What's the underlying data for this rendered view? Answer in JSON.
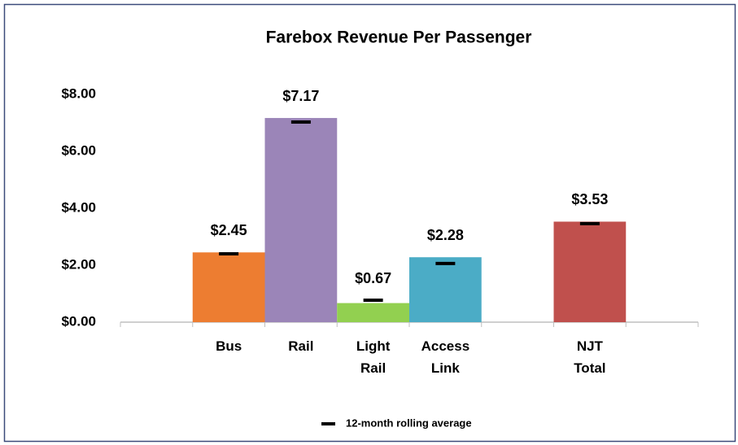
{
  "chart_data": {
    "type": "bar",
    "title": "Farebox Revenue Per Passenger",
    "categories": [
      null,
      "Bus",
      "Rail",
      "Light Rail",
      "Access Link",
      null,
      "NJT Total",
      null
    ],
    "values": [
      null,
      2.45,
      7.17,
      0.67,
      2.28,
      null,
      3.53,
      null
    ],
    "value_labels": [
      null,
      "$2.45",
      "$7.17",
      "$0.67",
      "$2.28",
      null,
      "$3.53",
      null
    ],
    "colors": [
      null,
      "#ed7d31",
      "#9b85b8",
      "#92d050",
      "#4bacc6",
      null,
      "#c0504d",
      null
    ],
    "rolling_average": {
      "name": "12-month rolling average",
      "color": "#000000",
      "values": [
        null,
        2.4,
        7.03,
        0.77,
        2.06,
        null,
        3.46,
        null
      ]
    },
    "ylim": [
      0,
      8
    ],
    "yticks": [
      {
        "value": 0,
        "label": "$0.00"
      },
      {
        "value": 2,
        "label": "$2.00"
      },
      {
        "value": 4,
        "label": "$4.00"
      },
      {
        "value": 6,
        "label": "$6.00"
      },
      {
        "value": 8,
        "label": "$8.00"
      }
    ],
    "grid": false
  }
}
